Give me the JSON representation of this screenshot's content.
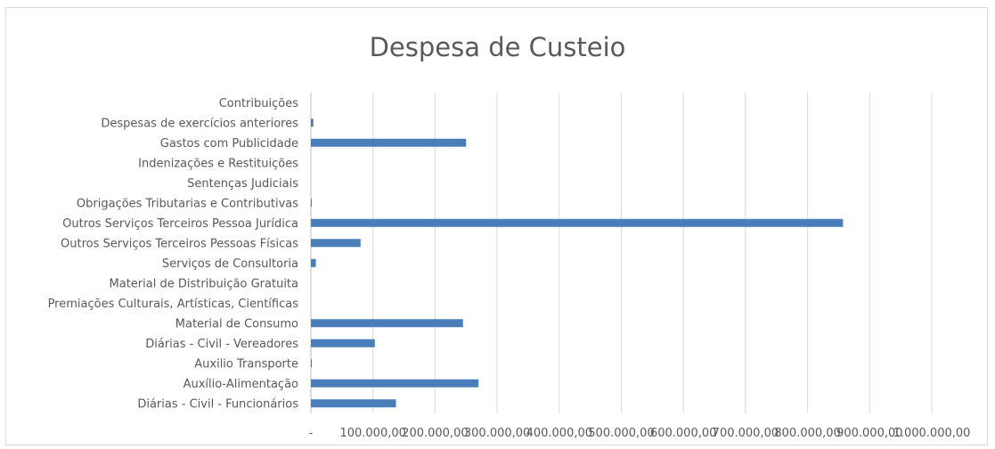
{
  "chart_data": {
    "type": "bar",
    "orientation": "horizontal",
    "title": "Despesa de Custeio",
    "xlabel": "",
    "ylabel": "",
    "xlim": [
      0,
      1000000
    ],
    "grid": true,
    "legend": "none",
    "bar_color": "#4a7ebb",
    "categories": [
      "Contribuições",
      "Despesas de exercícios anteriores",
      "Gastos com Publicidade",
      "Indenizações e Restituições",
      "Sentenças Judiciais",
      "Obrigações Tributarias e Contributivas",
      "Outros Serviços Terceiros Pessoa Jurídica",
      "Outros Serviços Terceiros Pessoas Físicas",
      "Serviços de Consultoria",
      "Material de Distribuição Gratuita",
      "Premiações Culturais, Artísticas, Científicas",
      "Material de Consumo",
      "Diárias - Civil - Vereadores",
      "Auxilio Transporte",
      "Auxílio-Alimentação",
      "Diárias - Civil - Funcionários"
    ],
    "values": [
      0,
      4000,
      250000,
      0,
      0,
      1500,
      857000,
      80000,
      8000,
      0,
      0,
      245000,
      103000,
      1500,
      270000,
      137000
    ],
    "tick_labels": [
      "-",
      "100.000,00",
      "200.000,00",
      "300.000,00",
      "400.000,00",
      "500.000,00",
      "600.000,00",
      "700.000,00",
      "800.000,00",
      "900.000,00",
      "1.000.000,00"
    ],
    "tick_values": [
      0,
      100000,
      200000,
      300000,
      400000,
      500000,
      600000,
      700000,
      800000,
      900000,
      1000000
    ]
  }
}
